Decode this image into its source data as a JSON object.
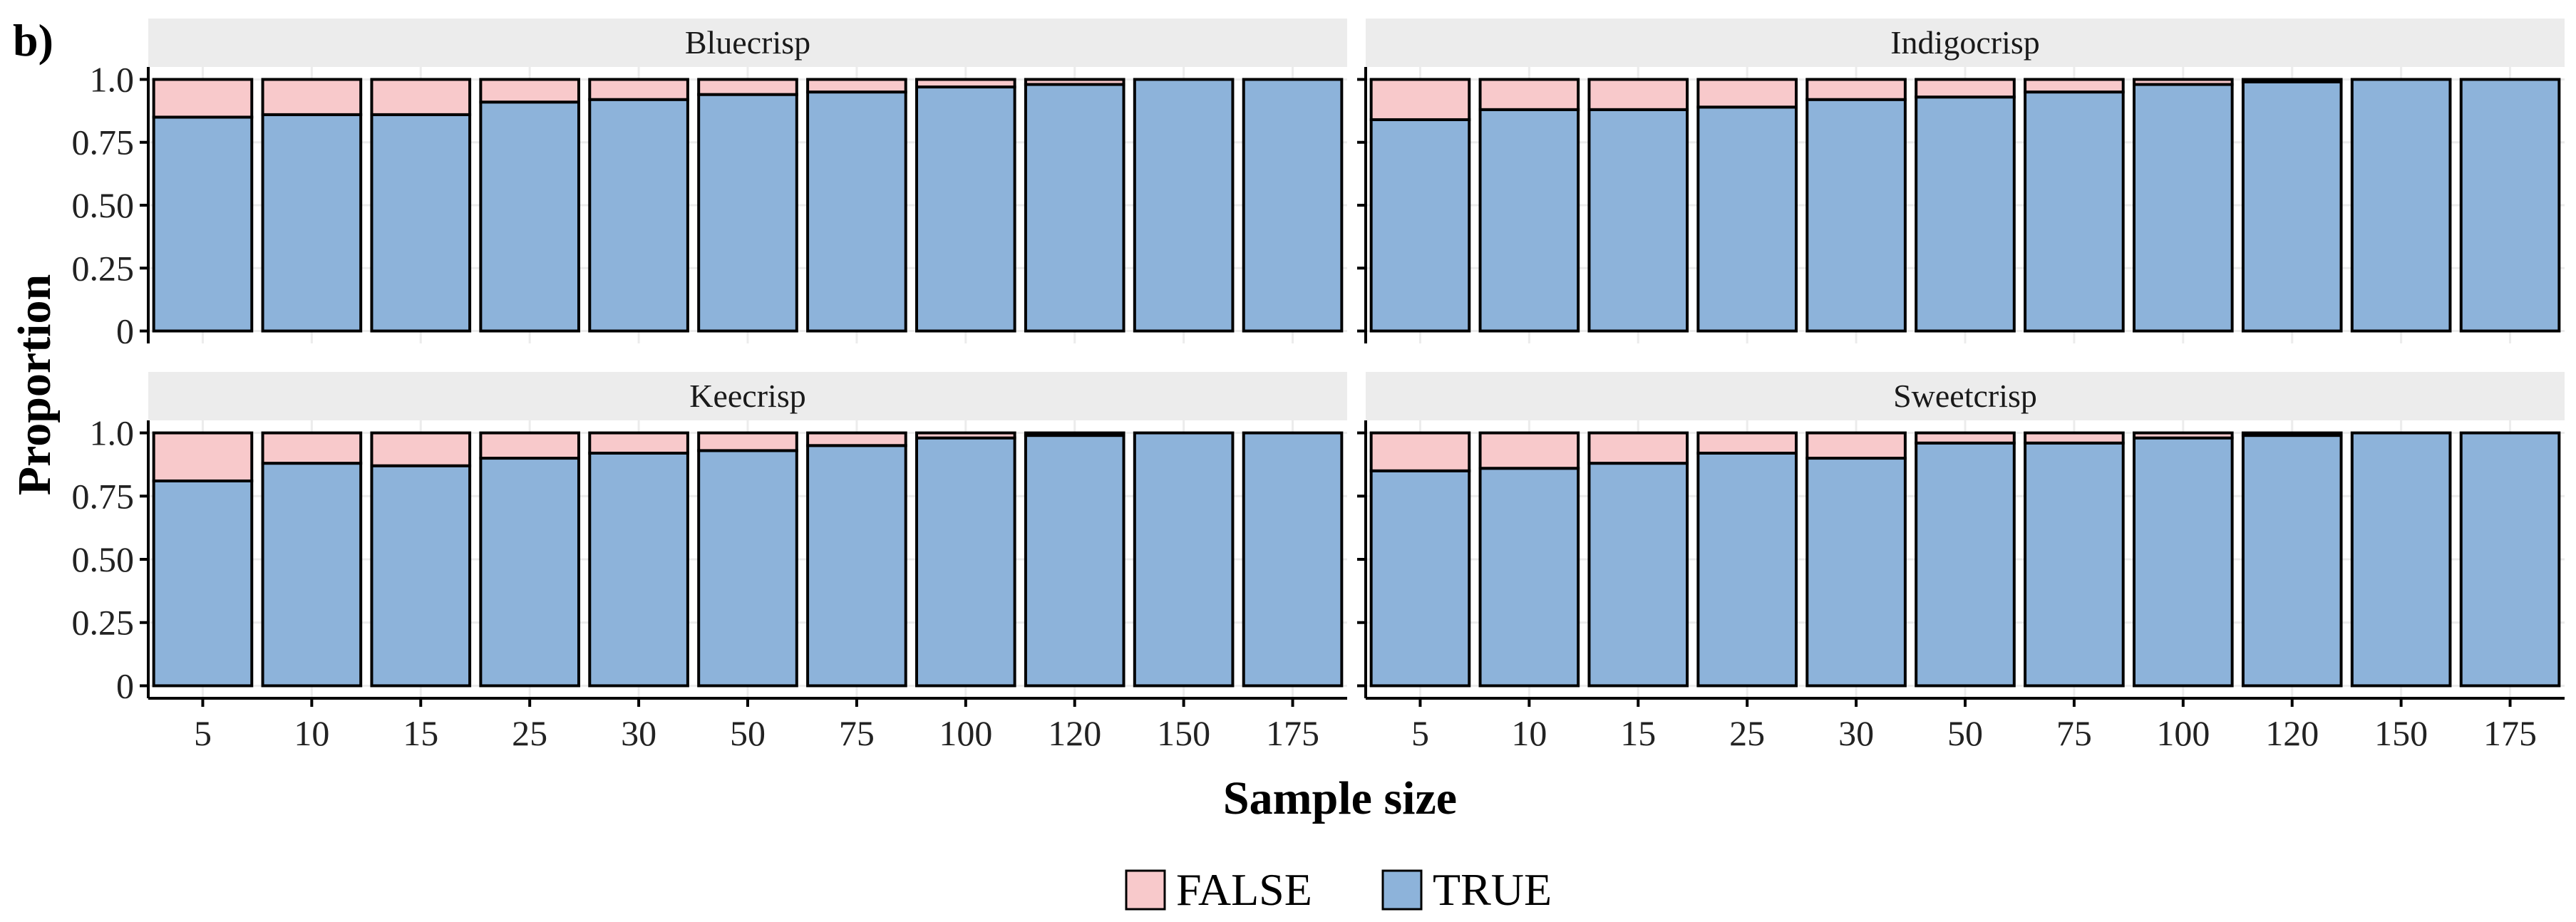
{
  "panel_tag": "b)",
  "chart_data": {
    "type": "bar",
    "stacked": true,
    "ylabel": "Proportion",
    "xlabel": "Sample size",
    "ylim": [
      0,
      1
    ],
    "yticks": [
      "0",
      "0.25",
      "0.50",
      "0.75",
      "1.0"
    ],
    "categories": [
      "5",
      "10",
      "15",
      "25",
      "30",
      "50",
      "75",
      "100",
      "120",
      "150",
      "175"
    ],
    "grid": true,
    "legend": {
      "position": "bottom",
      "entries": [
        {
          "label": "FALSE",
          "color": "#f8c9cb"
        },
        {
          "label": "TRUE",
          "color": "#8db3da"
        }
      ]
    },
    "panels": [
      {
        "title": "Bluecrisp",
        "series": [
          {
            "name": "TRUE",
            "values": [
              0.85,
              0.86,
              0.86,
              0.91,
              0.92,
              0.94,
              0.95,
              0.97,
              0.98,
              1.0,
              1.0
            ]
          },
          {
            "name": "FALSE",
            "values": [
              0.15,
              0.14,
              0.14,
              0.09,
              0.08,
              0.06,
              0.05,
              0.03,
              0.02,
              0.0,
              0.0
            ]
          }
        ]
      },
      {
        "title": "Indigocrisp",
        "series": [
          {
            "name": "TRUE",
            "values": [
              0.84,
              0.88,
              0.88,
              0.89,
              0.92,
              0.93,
              0.95,
              0.98,
              0.99,
              1.0,
              1.0
            ]
          },
          {
            "name": "FALSE",
            "values": [
              0.16,
              0.12,
              0.12,
              0.11,
              0.08,
              0.07,
              0.05,
              0.02,
              0.01,
              0.0,
              0.0
            ]
          }
        ]
      },
      {
        "title": "Keecrisp",
        "series": [
          {
            "name": "TRUE",
            "values": [
              0.81,
              0.88,
              0.87,
              0.9,
              0.92,
              0.93,
              0.95,
              0.98,
              0.99,
              1.0,
              1.0
            ]
          },
          {
            "name": "FALSE",
            "values": [
              0.19,
              0.12,
              0.13,
              0.1,
              0.08,
              0.07,
              0.05,
              0.02,
              0.01,
              0.0,
              0.0
            ]
          }
        ]
      },
      {
        "title": "Sweetcrisp",
        "series": [
          {
            "name": "TRUE",
            "values": [
              0.85,
              0.86,
              0.88,
              0.92,
              0.9,
              0.96,
              0.96,
              0.98,
              0.99,
              1.0,
              1.0
            ]
          },
          {
            "name": "FALSE",
            "values": [
              0.15,
              0.14,
              0.12,
              0.08,
              0.1,
              0.04,
              0.04,
              0.02,
              0.01,
              0.0,
              0.0
            ]
          }
        ]
      }
    ]
  }
}
